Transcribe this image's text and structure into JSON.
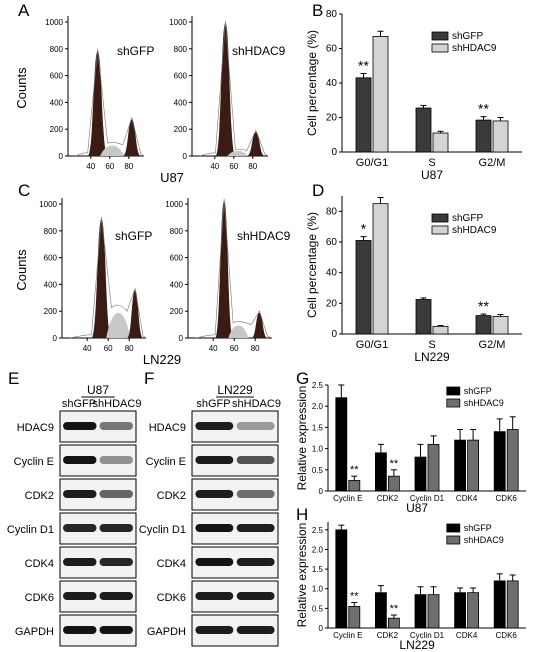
{
  "panel_labels": {
    "A": "A",
    "B": "B",
    "C": "C",
    "D": "D",
    "E": "E",
    "F": "F",
    "G": "G",
    "H": "H"
  },
  "flow": {
    "ylabel": "Counts",
    "top": {
      "cell_line": "U87",
      "left": {
        "label": "shGFP",
        "yticks": [
          "0",
          "200",
          "400",
          "600",
          "800",
          "1000"
        ],
        "xticks": [
          "40",
          "60",
          "80"
        ]
      },
      "right": {
        "label": "shHDAC9",
        "yticks": [
          "0",
          "200",
          "400",
          "600",
          "800",
          "1000"
        ],
        "xticks": [
          "40",
          "60",
          "80"
        ]
      }
    },
    "bottom": {
      "cell_line": "LN229",
      "left": {
        "label": "shGFP",
        "yticks": [
          "0",
          "200",
          "400",
          "600",
          "800",
          "1000"
        ],
        "xticks": [
          "40",
          "60",
          "80"
        ]
      },
      "right": {
        "label": "shHDAC9",
        "yticks": [
          "0",
          "200",
          "400",
          "600",
          "800",
          "1000"
        ],
        "xticks": [
          "40",
          "60",
          "80"
        ]
      }
    }
  },
  "blots": {
    "U87": {
      "title": "U87",
      "lanes": [
        "shGFP",
        "shHDAC9"
      ],
      "rows": [
        {
          "label": "HDAC9",
          "intensity": [
            1.0,
            0.45
          ]
        },
        {
          "label": "Cyclin E",
          "intensity": [
            1.0,
            0.3
          ]
        },
        {
          "label": "CDK2",
          "intensity": [
            0.95,
            0.55
          ]
        },
        {
          "label": "Cyclin D1",
          "intensity": [
            0.9,
            0.9
          ]
        },
        {
          "label": "CDK4",
          "intensity": [
            0.95,
            0.9
          ]
        },
        {
          "label": "CDK6",
          "intensity": [
            0.95,
            0.95
          ]
        },
        {
          "label": "GAPDH",
          "intensity": [
            1.0,
            1.0
          ]
        }
      ]
    },
    "LN229": {
      "title": "LN229",
      "lanes": [
        "shGFP",
        "shHDAC9"
      ],
      "rows": [
        {
          "label": "HDAC9",
          "intensity": [
            0.95,
            0.25
          ]
        },
        {
          "label": "Cyclin E",
          "intensity": [
            0.95,
            0.65
          ]
        },
        {
          "label": "CDK2",
          "intensity": [
            0.95,
            0.5
          ]
        },
        {
          "label": "Cyclin D1",
          "intensity": [
            1.0,
            0.95
          ]
        },
        {
          "label": "CDK4",
          "intensity": [
            1.0,
            0.95
          ]
        },
        {
          "label": "CDK6",
          "intensity": [
            0.95,
            0.95
          ]
        },
        {
          "label": "GAPDH",
          "intensity": [
            0.95,
            0.95
          ]
        }
      ]
    }
  },
  "colors": {
    "shGFP_bar": "#3a3a3a",
    "shHDAC9_bar_light": "#d4d4d4",
    "shHDAC9_bar_grey": "#6e6e6e",
    "histogram_fill": "#3a1c14",
    "histogram_s_phase": "#c8c8c8"
  },
  "chart_data": [
    {
      "id": "B",
      "type": "bar",
      "categories": [
        "G0/G1",
        "S",
        "G2/M"
      ],
      "series": [
        {
          "name": "shGFP",
          "values": [
            43,
            25.5,
            18.5
          ],
          "errors": [
            2.5,
            1.5,
            2
          ]
        },
        {
          "name": "shHDAC9",
          "values": [
            67,
            11,
            18
          ],
          "errors": [
            3,
            1,
            2
          ]
        }
      ],
      "annotations": [
        "**",
        "",
        "",
        "",
        "**",
        ""
      ],
      "xlabel": "U87",
      "ylabel": "Cell percentage (%)",
      "yticks": [
        "0",
        "20",
        "40",
        "60",
        "80"
      ],
      "ylim": [
        0,
        80
      ],
      "legend": "top-right"
    },
    {
      "id": "D",
      "type": "bar",
      "categories": [
        "G0/G1",
        "S",
        "G2/M"
      ],
      "series": [
        {
          "name": "shGFP",
          "values": [
            61,
            22.5,
            12
          ],
          "errors": [
            2.5,
            1,
            1
          ]
        },
        {
          "name": "shHDAC9",
          "values": [
            85,
            5,
            11.5
          ],
          "errors": [
            4,
            0.5,
            1.2
          ]
        }
      ],
      "annotations": [
        "*",
        "",
        "",
        "",
        "**",
        ""
      ],
      "xlabel": "LN229",
      "ylabel": "Cell percentage (%)",
      "yticks": [
        "0",
        "20",
        "40",
        "60",
        "80"
      ],
      "ylim": [
        0,
        90
      ],
      "legend": "top-right"
    },
    {
      "id": "G",
      "type": "bar",
      "categories": [
        "Cyclin E",
        "CDK2",
        "Cyclin D1",
        "CDK4",
        "CDK6"
      ],
      "series": [
        {
          "name": "shGFP",
          "values": [
            2.2,
            0.9,
            0.8,
            1.2,
            1.4
          ],
          "errors": [
            0.3,
            0.2,
            0.3,
            0.25,
            0.3
          ]
        },
        {
          "name": "shHDAC9",
          "values": [
            0.25,
            0.35,
            1.1,
            1.2,
            1.45
          ],
          "errors": [
            0.1,
            0.15,
            0.2,
            0.25,
            0.3
          ]
        }
      ],
      "annotations": [
        "",
        "**",
        "",
        "**",
        "",
        "",
        "",
        "",
        "",
        ""
      ],
      "xlabel": "U87",
      "ylabel": "Relative expression",
      "yticks": [
        "0",
        "0.5",
        "1.0",
        "1.5",
        "2.0",
        "2.5"
      ],
      "ylim": [
        0,
        2.5
      ],
      "legend": "top-right"
    },
    {
      "id": "H",
      "type": "bar",
      "categories": [
        "Cyclin E",
        "CDK2",
        "Cyclin D1",
        "CDK4",
        "CDK6"
      ],
      "series": [
        {
          "name": "shGFP",
          "values": [
            2.5,
            0.9,
            0.85,
            0.9,
            1.2
          ],
          "errors": [
            0.12,
            0.18,
            0.2,
            0.12,
            0.18
          ]
        },
        {
          "name": "shHDAC9",
          "values": [
            0.55,
            0.25,
            0.85,
            0.9,
            1.2
          ],
          "errors": [
            0.1,
            0.08,
            0.2,
            0.12,
            0.15
          ]
        }
      ],
      "annotations": [
        "",
        "**",
        "",
        "**",
        "",
        "",
        "",
        "",
        "",
        ""
      ],
      "xlabel": "LN229",
      "ylabel": "Relative expression",
      "yticks": [
        "0",
        "0.5",
        "1.0",
        "1.5",
        "2.0",
        "2.5"
      ],
      "ylim": [
        0,
        2.7
      ],
      "legend": "top-right"
    }
  ]
}
